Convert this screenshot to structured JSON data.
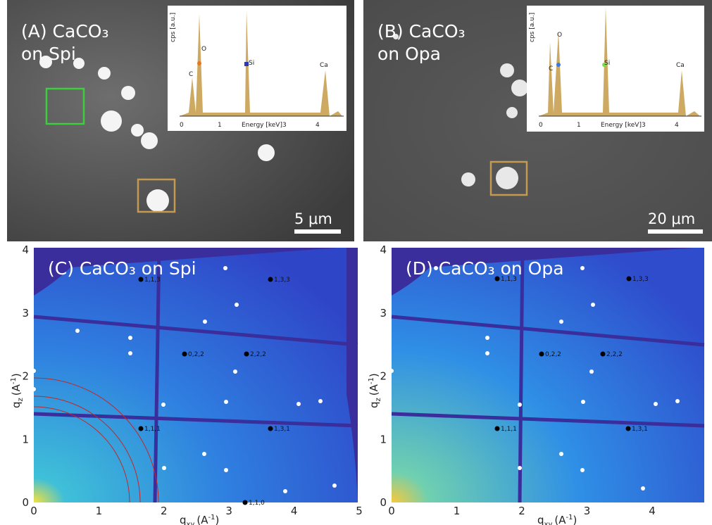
{
  "panels": [
    {
      "label": "(A) CaCO₃",
      "label2": "on Spi",
      "scale_bar": "5 μm",
      "inset": {
        "y_label": "cps [a.u.]",
        "x_label": "Energy [keV]",
        "x_ticks": [
          "0",
          "1",
          "3",
          "4"
        ],
        "peaks": [
          "C",
          "O",
          "Si",
          "Ca"
        ]
      }
    },
    {
      "label": "(B) CaCO₃",
      "label2": "on Opa",
      "scale_bar": "20 μm",
      "inset": {
        "y_label": "cps [a.u.]",
        "x_label": "Energy [keV]",
        "x_ticks": [
          "0",
          "1",
          "3",
          "4"
        ],
        "peaks": [
          "C",
          "O",
          "Si",
          "Ca"
        ]
      }
    },
    {
      "label": "(C) CaCO₃ on Spi",
      "x_ticks": [
        "0",
        "1",
        "2",
        "3",
        "4",
        "5"
      ],
      "y_ticks": [
        "0",
        "1",
        "2",
        "3",
        "4"
      ],
      "reflections": [
        "1,1,3",
        "1,3,3",
        "0,2,2",
        "2,2,2",
        "1,1,1",
        "1,3,1",
        "1,1,0"
      ]
    },
    {
      "label": "(D) CaCO₃ on Opa",
      "x_ticks": [
        "0",
        "1",
        "2",
        "3",
        "4"
      ],
      "y_ticks": [
        "0",
        "1",
        "2",
        "3",
        "4"
      ],
      "reflections": [
        "1,1,3",
        "1,3,3",
        "0,2,2",
        "2,2,2",
        "1,1,1",
        "1,3,1"
      ]
    }
  ],
  "axes": {
    "x": {
      "symbol": "q",
      "sub": "xy",
      "unit": "(A",
      "exp": "-1",
      "close": ")"
    },
    "y": {
      "symbol": "q",
      "sub": "z",
      "unit": "(A",
      "exp": "-1",
      "close": ")"
    }
  }
}
